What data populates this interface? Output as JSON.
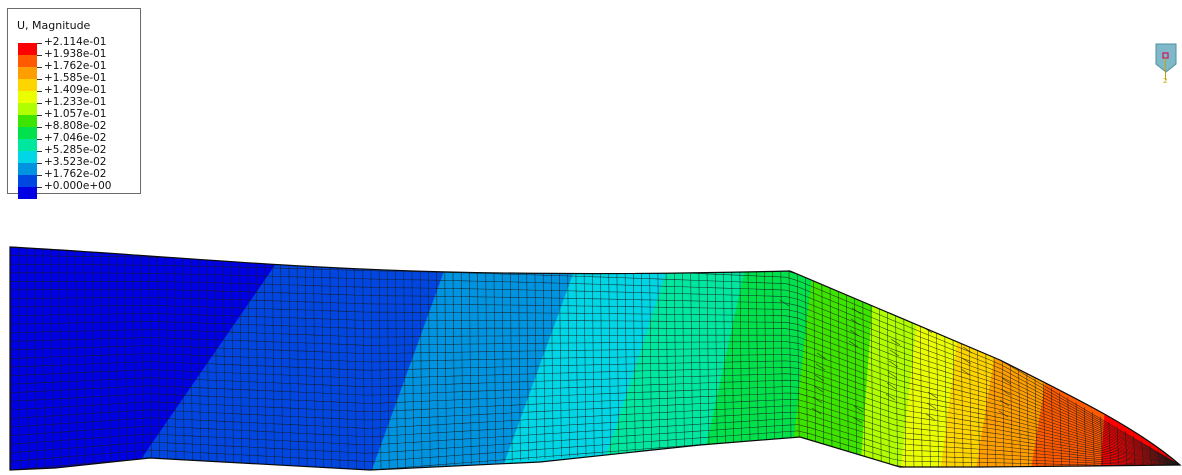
{
  "legend": {
    "title": "U, Magnitude",
    "labels": [
      "+2.114e-01",
      "+1.938e-01",
      "+1.762e-01",
      "+1.585e-01",
      "+1.409e-01",
      "+1.233e-01",
      "+1.057e-01",
      "+8.808e-02",
      "+7.046e-02",
      "+5.285e-02",
      "+3.523e-02",
      "+1.762e-02",
      "+0.000e+00"
    ],
    "colors": [
      "#ff0000",
      "#ff5a00",
      "#ff9e00",
      "#ffd500",
      "#eaff00",
      "#b0ff00",
      "#3ce400",
      "#00e14c",
      "#00e7a0",
      "#00d6e6",
      "#0094e0",
      "#0046e0",
      "#0000e4"
    ]
  },
  "triad": {
    "icon": "view-triad-icon",
    "axis_label": "2",
    "colors": {
      "face": "#7fb8c8",
      "edge": "#4f8fa0",
      "axis": "#c8a000",
      "point": "#d4145a"
    }
  },
  "model": {
    "icon": "fe-mesh-contour",
    "colors": {
      "mesh_line": "#1a1a1a",
      "outline": "#0a0a0a"
    }
  }
}
